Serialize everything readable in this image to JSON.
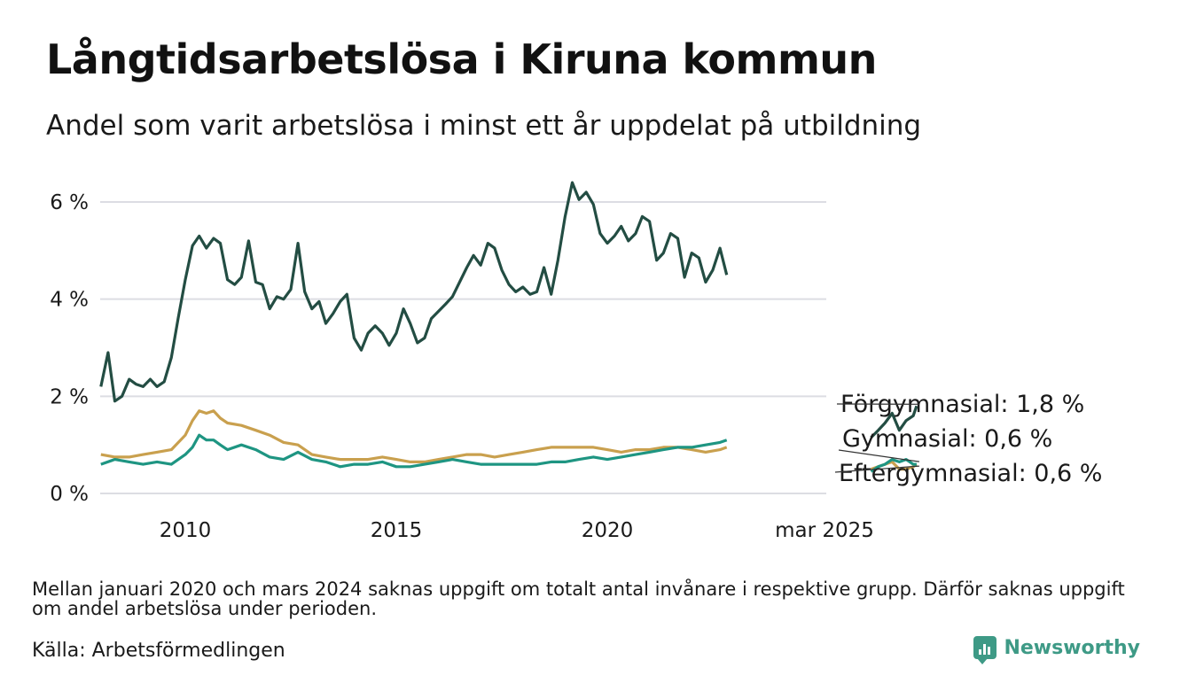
{
  "title": "Långtidsarbetslösa i Kiruna kommun",
  "subtitle": "Andel som varit arbetslösa i minst ett år uppdelat på utbildning",
  "note": "Mellan januari 2020 och mars 2024 saknas uppgift om totalt antal invånare i respektive grupp. Därför saknas uppgift om andel arbetslösa under perioden.",
  "source": "Källa: Arbetsförmedlingen",
  "brand": {
    "name": "Newsworthy",
    "icon": "newsworthy-logo-icon"
  },
  "colors": {
    "forgymnasial": "#234d43",
    "gymnasial": "#1e9582",
    "eftergymnasial": "#c9a04e",
    "grid": "#dcdde3"
  },
  "chart_data": {
    "type": "line",
    "xlabel": "",
    "ylabel": "",
    "ylim": [
      0,
      6.5
    ],
    "y_ticks": [
      0,
      2,
      4,
      6
    ],
    "y_tick_labels": [
      "0 %",
      "2 %",
      "4 %",
      "6 %"
    ],
    "x_tick_labels": [
      "2010",
      "2015",
      "2020",
      "mar 2025"
    ],
    "grid": true,
    "legend_labels": [
      "Förgymnasial: 1,8 %",
      "Gymnasial: 0,6 %",
      "Eftergymnasial: 0,6 %"
    ],
    "series": [
      {
        "name": "Förgymnasial",
        "color": "#234d43",
        "points": [
          [
            2008.0,
            2.2
          ],
          [
            2008.17,
            2.9
          ],
          [
            2008.33,
            1.9
          ],
          [
            2008.5,
            2.0
          ],
          [
            2008.67,
            2.35
          ],
          [
            2008.83,
            2.25
          ],
          [
            2009.0,
            2.2
          ],
          [
            2009.17,
            2.35
          ],
          [
            2009.33,
            2.2
          ],
          [
            2009.5,
            2.3
          ],
          [
            2009.67,
            2.8
          ],
          [
            2009.83,
            3.6
          ],
          [
            2010.0,
            4.4
          ],
          [
            2010.17,
            5.1
          ],
          [
            2010.33,
            5.3
          ],
          [
            2010.5,
            5.05
          ],
          [
            2010.67,
            5.25
          ],
          [
            2010.83,
            5.15
          ],
          [
            2011.0,
            4.4
          ],
          [
            2011.17,
            4.3
          ],
          [
            2011.33,
            4.45
          ],
          [
            2011.5,
            5.2
          ],
          [
            2011.67,
            4.35
          ],
          [
            2011.83,
            4.3
          ],
          [
            2012.0,
            3.8
          ],
          [
            2012.17,
            4.05
          ],
          [
            2012.33,
            4.0
          ],
          [
            2012.5,
            4.2
          ],
          [
            2012.67,
            5.15
          ],
          [
            2012.83,
            4.15
          ],
          [
            2013.0,
            3.8
          ],
          [
            2013.17,
            3.95
          ],
          [
            2013.33,
            3.5
          ],
          [
            2013.5,
            3.7
          ],
          [
            2013.67,
            3.95
          ],
          [
            2013.83,
            4.1
          ],
          [
            2014.0,
            3.2
          ],
          [
            2014.17,
            2.95
          ],
          [
            2014.33,
            3.3
          ],
          [
            2014.5,
            3.45
          ],
          [
            2014.67,
            3.3
          ],
          [
            2014.83,
            3.05
          ],
          [
            2015.0,
            3.3
          ],
          [
            2015.17,
            3.8
          ],
          [
            2015.33,
            3.5
          ],
          [
            2015.5,
            3.1
          ],
          [
            2015.67,
            3.2
          ],
          [
            2015.83,
            3.6
          ],
          [
            2016.0,
            3.75
          ],
          [
            2016.17,
            3.9
          ],
          [
            2016.33,
            4.05
          ],
          [
            2016.5,
            4.35
          ],
          [
            2016.67,
            4.65
          ],
          [
            2016.83,
            4.9
          ],
          [
            2017.0,
            4.7
          ],
          [
            2017.17,
            5.15
          ],
          [
            2017.33,
            5.05
          ],
          [
            2017.5,
            4.6
          ],
          [
            2017.67,
            4.3
          ],
          [
            2017.83,
            4.15
          ],
          [
            2018.0,
            4.25
          ],
          [
            2018.17,
            4.1
          ],
          [
            2018.33,
            4.15
          ],
          [
            2018.5,
            4.65
          ],
          [
            2018.67,
            4.1
          ],
          [
            2018.83,
            4.8
          ],
          [
            2019.0,
            5.7
          ],
          [
            2019.17,
            6.4
          ],
          [
            2019.33,
            6.05
          ],
          [
            2019.5,
            6.2
          ],
          [
            2019.67,
            5.95
          ],
          [
            2019.83,
            5.35
          ],
          [
            2020.0,
            5.15
          ],
          [
            2020.17,
            5.3
          ],
          [
            2020.33,
            5.5
          ],
          [
            2020.5,
            5.2
          ],
          [
            2020.67,
            5.35
          ],
          [
            2020.83,
            5.7
          ],
          [
            2021.0,
            5.6
          ],
          [
            2021.17,
            4.8
          ],
          [
            2021.33,
            4.95
          ],
          [
            2021.5,
            5.35
          ],
          [
            2021.67,
            5.25
          ],
          [
            2021.83,
            4.45
          ],
          [
            2022.0,
            4.95
          ],
          [
            2022.17,
            4.85
          ],
          [
            2022.33,
            4.35
          ],
          [
            2022.5,
            4.6
          ],
          [
            2022.67,
            5.05
          ],
          [
            2022.83,
            4.5
          ]
        ],
        "points_recent": [
          [
            2026.25,
            1.15
          ],
          [
            2026.42,
            1.3
          ],
          [
            2026.58,
            1.45
          ],
          [
            2026.75,
            1.65
          ],
          [
            2026.92,
            1.3
          ],
          [
            2027.08,
            1.5
          ],
          [
            2027.25,
            1.6
          ],
          [
            2027.33,
            1.8
          ]
        ]
      },
      {
        "name": "Gymnasial",
        "color": "#1e9582",
        "points": [
          [
            2008.0,
            0.6
          ],
          [
            2008.33,
            0.7
          ],
          [
            2008.67,
            0.65
          ],
          [
            2009.0,
            0.6
          ],
          [
            2009.33,
            0.65
          ],
          [
            2009.67,
            0.6
          ],
          [
            2010.0,
            0.8
          ],
          [
            2010.17,
            0.95
          ],
          [
            2010.33,
            1.2
          ],
          [
            2010.5,
            1.1
          ],
          [
            2010.67,
            1.1
          ],
          [
            2010.83,
            1.0
          ],
          [
            2011.0,
            0.9
          ],
          [
            2011.33,
            1.0
          ],
          [
            2011.67,
            0.9
          ],
          [
            2012.0,
            0.75
          ],
          [
            2012.33,
            0.7
          ],
          [
            2012.67,
            0.85
          ],
          [
            2013.0,
            0.7
          ],
          [
            2013.33,
            0.65
          ],
          [
            2013.67,
            0.55
          ],
          [
            2014.0,
            0.6
          ],
          [
            2014.33,
            0.6
          ],
          [
            2014.67,
            0.65
          ],
          [
            2015.0,
            0.55
          ],
          [
            2015.33,
            0.55
          ],
          [
            2015.67,
            0.6
          ],
          [
            2016.0,
            0.65
          ],
          [
            2016.33,
            0.7
          ],
          [
            2016.67,
            0.65
          ],
          [
            2017.0,
            0.6
          ],
          [
            2017.33,
            0.6
          ],
          [
            2017.67,
            0.6
          ],
          [
            2018.0,
            0.6
          ],
          [
            2018.33,
            0.6
          ],
          [
            2018.67,
            0.65
          ],
          [
            2019.0,
            0.65
          ],
          [
            2019.33,
            0.7
          ],
          [
            2019.67,
            0.75
          ],
          [
            2020.0,
            0.7
          ],
          [
            2020.33,
            0.75
          ],
          [
            2020.67,
            0.8
          ],
          [
            2021.0,
            0.85
          ],
          [
            2021.33,
            0.9
          ],
          [
            2021.67,
            0.95
          ],
          [
            2022.0,
            0.95
          ],
          [
            2022.33,
            1.0
          ],
          [
            2022.67,
            1.05
          ],
          [
            2022.83,
            1.1
          ]
        ],
        "points_recent": [
          [
            2026.25,
            0.45
          ],
          [
            2026.42,
            0.55
          ],
          [
            2026.58,
            0.6
          ],
          [
            2026.75,
            0.7
          ],
          [
            2026.92,
            0.65
          ],
          [
            2027.08,
            0.7
          ],
          [
            2027.25,
            0.6
          ],
          [
            2027.33,
            0.6
          ]
        ]
      },
      {
        "name": "Eftergymnasial",
        "color": "#c9a04e",
        "points": [
          [
            2008.0,
            0.8
          ],
          [
            2008.33,
            0.75
          ],
          [
            2008.67,
            0.75
          ],
          [
            2009.0,
            0.8
          ],
          [
            2009.33,
            0.85
          ],
          [
            2009.67,
            0.9
          ],
          [
            2010.0,
            1.2
          ],
          [
            2010.17,
            1.5
          ],
          [
            2010.33,
            1.7
          ],
          [
            2010.5,
            1.65
          ],
          [
            2010.67,
            1.7
          ],
          [
            2010.83,
            1.55
          ],
          [
            2011.0,
            1.45
          ],
          [
            2011.33,
            1.4
          ],
          [
            2011.67,
            1.3
          ],
          [
            2012.0,
            1.2
          ],
          [
            2012.33,
            1.05
          ],
          [
            2012.67,
            1.0
          ],
          [
            2013.0,
            0.8
          ],
          [
            2013.33,
            0.75
          ],
          [
            2013.67,
            0.7
          ],
          [
            2014.0,
            0.7
          ],
          [
            2014.33,
            0.7
          ],
          [
            2014.67,
            0.75
          ],
          [
            2015.0,
            0.7
          ],
          [
            2015.33,
            0.65
          ],
          [
            2015.67,
            0.65
          ],
          [
            2016.0,
            0.7
          ],
          [
            2016.33,
            0.75
          ],
          [
            2016.67,
            0.8
          ],
          [
            2017.0,
            0.8
          ],
          [
            2017.33,
            0.75
          ],
          [
            2017.67,
            0.8
          ],
          [
            2018.0,
            0.85
          ],
          [
            2018.33,
            0.9
          ],
          [
            2018.67,
            0.95
          ],
          [
            2019.0,
            0.95
          ],
          [
            2019.33,
            0.95
          ],
          [
            2019.67,
            0.95
          ],
          [
            2020.0,
            0.9
          ],
          [
            2020.33,
            0.85
          ],
          [
            2020.67,
            0.9
          ],
          [
            2021.0,
            0.9
          ],
          [
            2021.33,
            0.95
          ],
          [
            2021.67,
            0.95
          ],
          [
            2022.0,
            0.9
          ],
          [
            2022.33,
            0.85
          ],
          [
            2022.67,
            0.9
          ],
          [
            2022.83,
            0.95
          ]
        ],
        "points_recent": [
          [
            2026.25,
            0.5
          ],
          [
            2026.42,
            0.55
          ],
          [
            2026.58,
            0.6
          ],
          [
            2026.75,
            0.65
          ],
          [
            2026.92,
            0.5
          ],
          [
            2027.08,
            0.5
          ],
          [
            2027.25,
            0.55
          ],
          [
            2027.33,
            0.6
          ]
        ]
      }
    ]
  }
}
